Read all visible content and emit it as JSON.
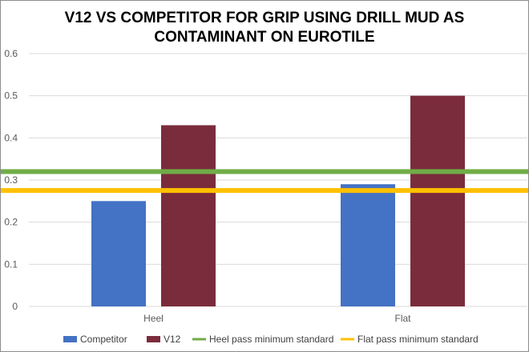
{
  "chart_data": {
    "type": "bar",
    "title_line1": "V12 VS COMPETITOR FOR GRIP USING DRILL MUD AS",
    "title_line2": "CONTAMINANT ON EUROTILE",
    "categories": [
      "Heel",
      "Flat"
    ],
    "series": [
      {
        "name": "Competitor",
        "values": [
          0.25,
          0.29
        ],
        "color": "#4472c4"
      },
      {
        "name": "V12",
        "values": [
          0.43,
          0.5
        ],
        "color": "#7b2c3c"
      }
    ],
    "reference_lines": [
      {
        "name": "Heel pass minimum standard",
        "value": 0.32,
        "color": "#70ad47"
      },
      {
        "name": "Flat pass minimum standard",
        "value": 0.275,
        "color": "#ffc000"
      }
    ],
    "ylim": [
      0,
      0.6
    ],
    "yticks": [
      "0",
      "0.1",
      "0.2",
      "0.3",
      "0.4",
      "0.5",
      "0.6"
    ],
    "grid": true,
    "legend_position": "bottom"
  }
}
